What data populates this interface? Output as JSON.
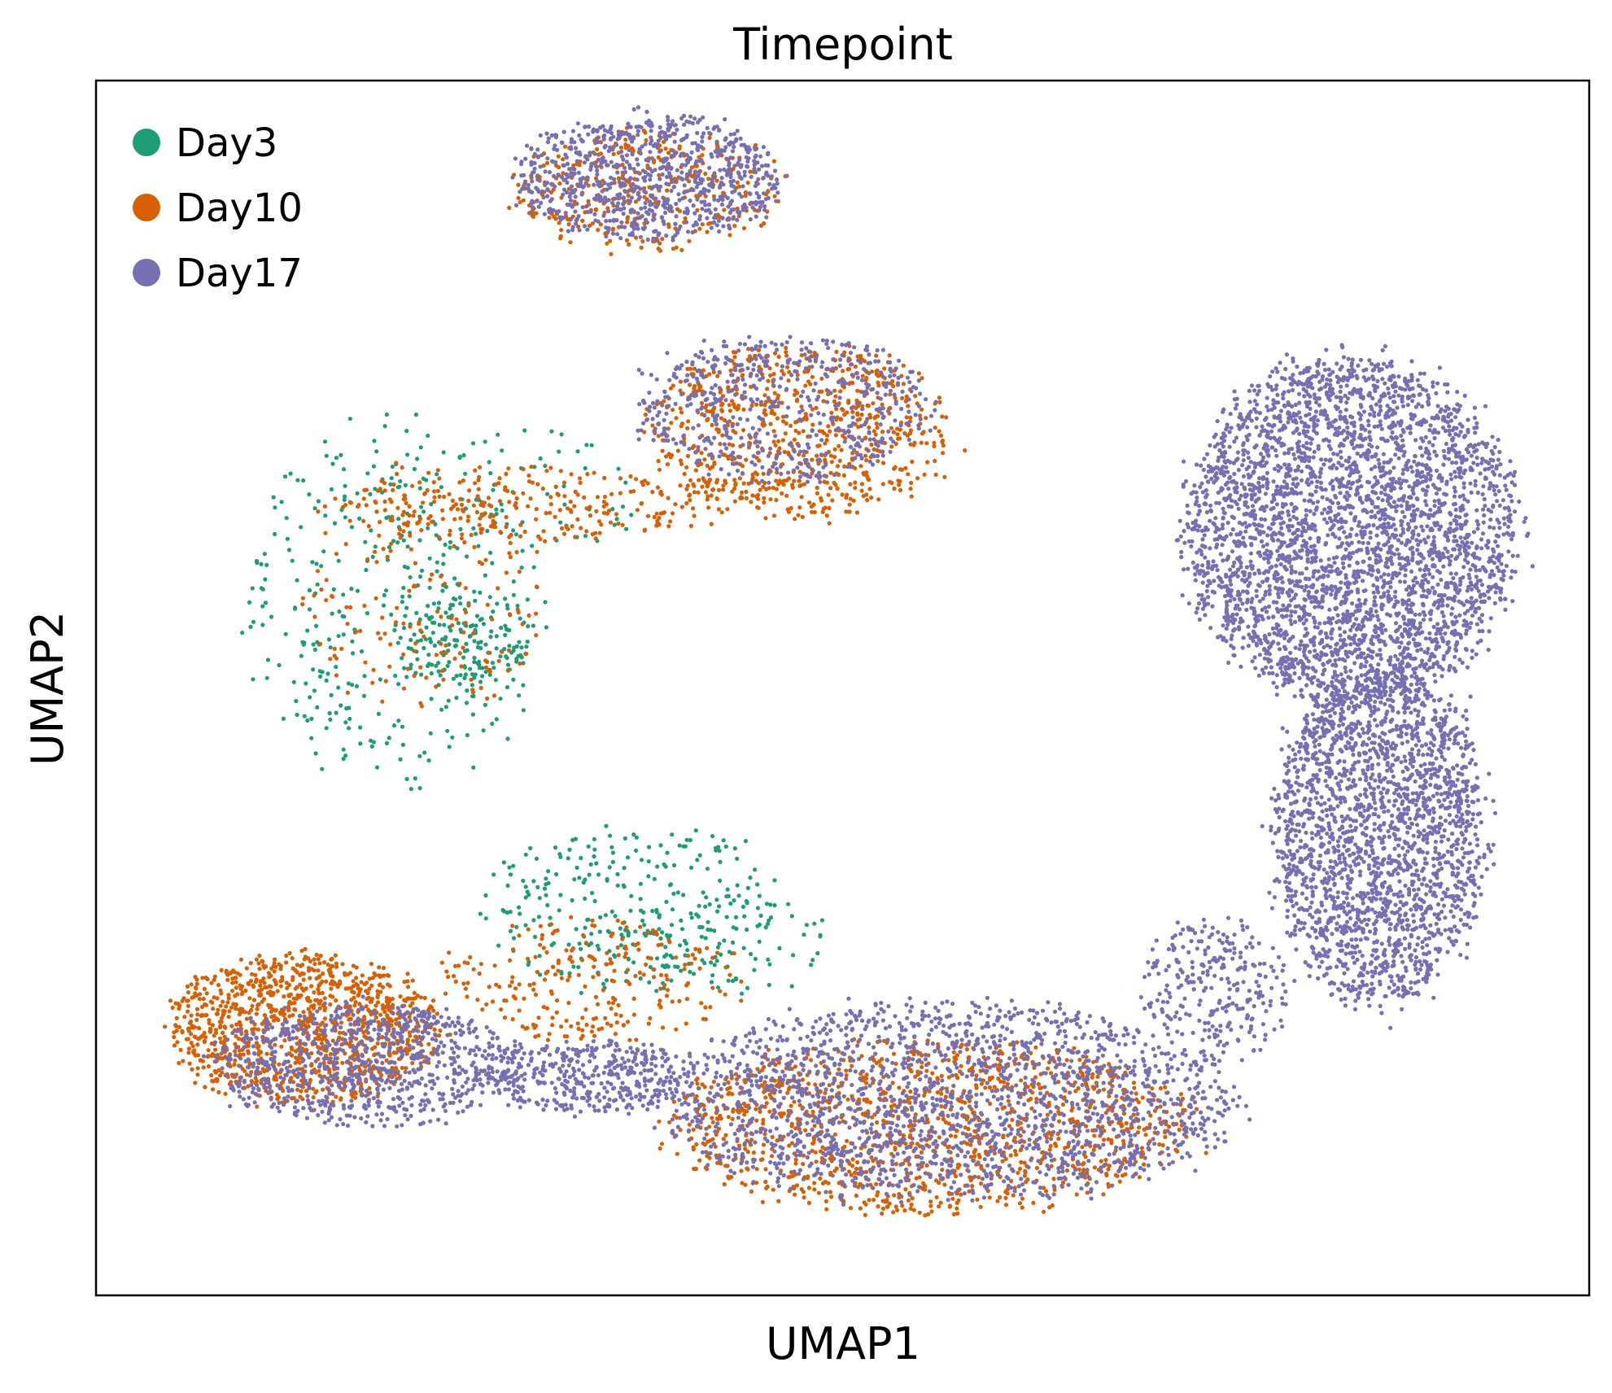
{
  "chart_data": {
    "type": "scatter",
    "title": "Timepoint",
    "xlabel": "UMAP1",
    "ylabel": "UMAP2",
    "xlim": [
      0,
      100
    ],
    "ylim": [
      0,
      100
    ],
    "ticks": "none",
    "grid": false,
    "legend_position": "top-left",
    "series": [
      {
        "name": "Day3",
        "color": "#1b9e77",
        "approx_count": 900,
        "regions": [
          {
            "cx": 20,
            "cy": 57,
            "rx": 10,
            "ry": 15,
            "weight": 5
          },
          {
            "cx": 25,
            "cy": 54,
            "rx": 4,
            "ry": 4,
            "weight": 2
          },
          {
            "cx": 36,
            "cy": 32,
            "rx": 10,
            "ry": 7,
            "weight": 4
          },
          {
            "cx": 42,
            "cy": 29,
            "rx": 7,
            "ry": 4,
            "weight": 1
          },
          {
            "cx": 28,
            "cy": 66,
            "rx": 9,
            "ry": 6,
            "weight": 1
          }
        ]
      },
      {
        "name": "Day10",
        "color": "#d95f02",
        "approx_count": 4200,
        "regions": [
          {
            "cx": 14,
            "cy": 22,
            "rx": 9,
            "ry": 6,
            "weight": 9
          },
          {
            "cx": 56,
            "cy": 14,
            "rx": 17,
            "ry": 7,
            "weight": 10
          },
          {
            "cx": 47,
            "cy": 71,
            "rx": 10,
            "ry": 7,
            "weight": 6
          },
          {
            "cx": 37,
            "cy": 91,
            "rx": 9,
            "ry": 5,
            "weight": 3
          },
          {
            "cx": 29,
            "cy": 65,
            "rx": 13,
            "ry": 3,
            "weight": 2
          },
          {
            "cx": 22,
            "cy": 58,
            "rx": 8,
            "ry": 10,
            "weight": 1.5
          },
          {
            "cx": 33,
            "cy": 26,
            "rx": 10,
            "ry": 5,
            "weight": 2
          }
        ]
      },
      {
        "name": "Day17",
        "color": "#7570b3",
        "approx_count": 10500,
        "regions": [
          {
            "cx": 84,
            "cy": 63,
            "rx": 11,
            "ry": 14,
            "weight": 26
          },
          {
            "cx": 86,
            "cy": 38,
            "rx": 7,
            "ry": 14,
            "weight": 16
          },
          {
            "cx": 57,
            "cy": 16,
            "rx": 19,
            "ry": 8,
            "weight": 14
          },
          {
            "cx": 18,
            "cy": 19,
            "rx": 10,
            "ry": 5,
            "weight": 6
          },
          {
            "cx": 37,
            "cy": 92,
            "rx": 9,
            "ry": 5,
            "weight": 6
          },
          {
            "cx": 33,
            "cy": 18,
            "rx": 7,
            "ry": 3,
            "weight": 3
          },
          {
            "cx": 46,
            "cy": 73,
            "rx": 10,
            "ry": 6,
            "weight": 4
          },
          {
            "cx": 75,
            "cy": 25,
            "rx": 5,
            "ry": 6,
            "weight": 2
          }
        ]
      }
    ]
  }
}
